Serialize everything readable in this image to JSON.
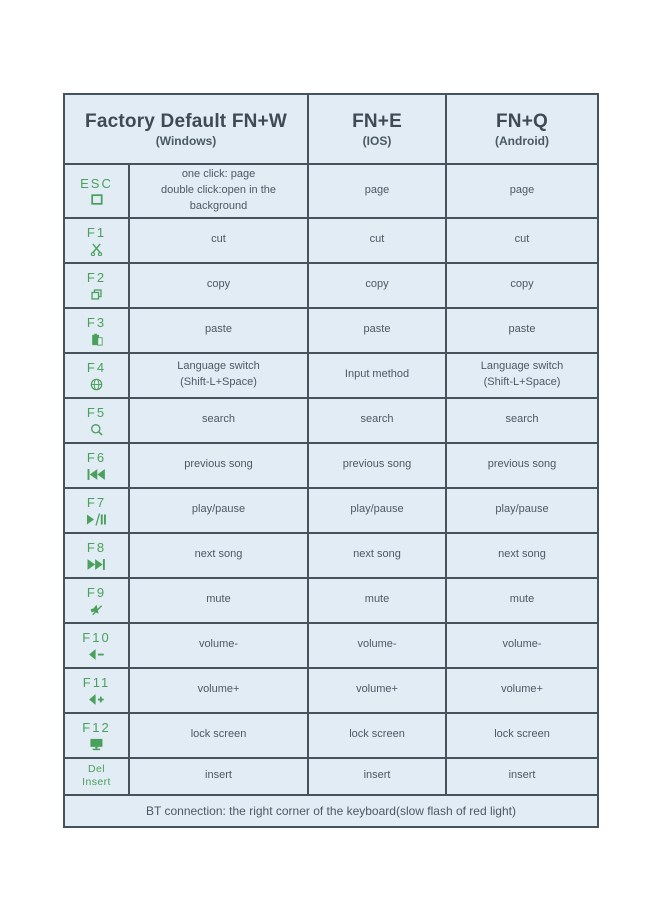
{
  "table": {
    "colors": {
      "cell_bg": "#e2ecf4",
      "border": "#46525c",
      "text": "#4b5865",
      "green": "#4aa05c"
    },
    "header": {
      "col1": {
        "title": "Factory Default FN+W",
        "subtitle": "(Windows)"
      },
      "col2": {
        "title": "FN+E",
        "subtitle": "(IOS)"
      },
      "col3": {
        "title": "FN+Q",
        "subtitle": "(Android)"
      }
    },
    "rows": [
      {
        "key": "ESC",
        "icon": "window-outline",
        "windows": "one click: page\ndouble click:open in the background",
        "ios": "page",
        "android": "page"
      },
      {
        "key": "F1",
        "icon": "scissors",
        "windows": "cut",
        "ios": "cut",
        "android": "cut"
      },
      {
        "key": "F2",
        "icon": "copy",
        "windows": "copy",
        "ios": "copy",
        "android": "copy"
      },
      {
        "key": "F3",
        "icon": "paste",
        "windows": "paste",
        "ios": "paste",
        "android": "paste"
      },
      {
        "key": "F4",
        "icon": "globe",
        "windows": "Language switch\n(Shift-L+Space)",
        "ios": "Input method",
        "android": "Language switch\n(Shift-L+Space)"
      },
      {
        "key": "F5",
        "icon": "search",
        "windows": "search",
        "ios": "search",
        "android": "search"
      },
      {
        "key": "F6",
        "icon": "previous-track",
        "windows": "previous song",
        "ios": "previous song",
        "android": "previous song"
      },
      {
        "key": "F7",
        "icon": "play-pause",
        "windows": "play/pause",
        "ios": "play/pause",
        "android": "play/pause"
      },
      {
        "key": "F8",
        "icon": "next-track",
        "windows": "next song",
        "ios": "next song",
        "android": "next song"
      },
      {
        "key": "F9",
        "icon": "mute",
        "windows": "mute",
        "ios": "mute",
        "android": "mute"
      },
      {
        "key": "F10",
        "icon": "volume-down",
        "windows": "volume-",
        "ios": "volume-",
        "android": "volume-"
      },
      {
        "key": "F11",
        "icon": "volume-up",
        "windows": "volume+",
        "ios": "volume+",
        "android": "volume+"
      },
      {
        "key": "F12",
        "icon": "lock-screen",
        "windows": "lock screen",
        "ios": "lock screen",
        "android": "lock screen"
      },
      {
        "key": "Del\nInsert",
        "icon": "",
        "windows": "insert",
        "ios": "insert",
        "android": "insert"
      }
    ],
    "footer": "BT connection: the right corner of the keyboard(slow flash of red light)"
  }
}
